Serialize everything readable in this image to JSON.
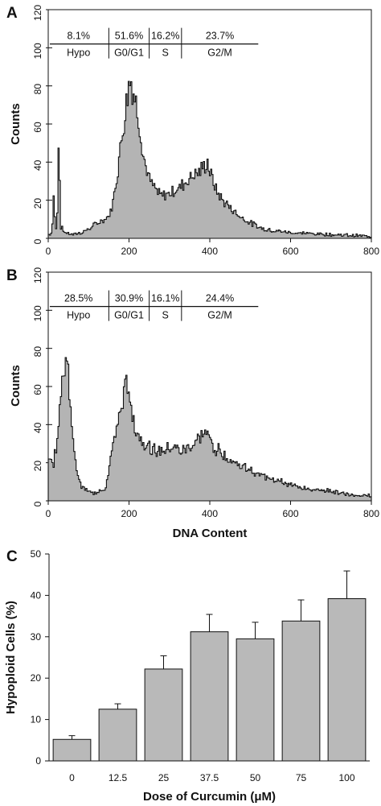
{
  "chart_data": [
    {
      "panel": "A",
      "type": "area",
      "xlabel": "",
      "ylabel": "Counts",
      "xlim": [
        0,
        800
      ],
      "ylim": [
        0,
        120
      ],
      "x_ticks": [
        "0",
        "200",
        "400",
        "600",
        "800"
      ],
      "y_ticks": [
        "0",
        "20",
        "40",
        "60",
        "80",
        "100",
        "120"
      ],
      "phases": [
        {
          "label": "Hypo",
          "percent": "8.1%",
          "range": [
            0,
            150
          ]
        },
        {
          "label": "G0/G1",
          "percent": "51.6%",
          "range": [
            150,
            250
          ]
        },
        {
          "label": "S",
          "percent": "16.2%",
          "range": [
            250,
            330
          ]
        },
        {
          "label": "G2/M",
          "percent": "23.7%",
          "range": [
            330,
            520
          ]
        }
      ],
      "profile": [
        [
          0,
          2
        ],
        [
          8,
          3
        ],
        [
          12,
          22
        ],
        [
          16,
          8
        ],
        [
          20,
          3
        ],
        [
          24,
          46
        ],
        [
          27,
          30
        ],
        [
          30,
          6
        ],
        [
          40,
          3
        ],
        [
          60,
          2
        ],
        [
          80,
          3
        ],
        [
          100,
          5
        ],
        [
          120,
          8
        ],
        [
          140,
          10
        ],
        [
          150,
          12
        ],
        [
          160,
          20
        ],
        [
          170,
          35
        ],
        [
          180,
          52
        ],
        [
          190,
          68
        ],
        [
          197,
          80
        ],
        [
          203,
          84
        ],
        [
          208,
          78
        ],
        [
          215,
          72
        ],
        [
          225,
          60
        ],
        [
          235,
          42
        ],
        [
          250,
          30
        ],
        [
          265,
          25
        ],
        [
          280,
          22
        ],
        [
          300,
          24
        ],
        [
          320,
          26
        ],
        [
          340,
          30
        ],
        [
          360,
          34
        ],
        [
          375,
          35
        ],
        [
          385,
          38
        ],
        [
          393,
          40
        ],
        [
          400,
          34
        ],
        [
          415,
          25
        ],
        [
          430,
          20
        ],
        [
          450,
          16
        ],
        [
          470,
          12
        ],
        [
          500,
          8
        ],
        [
          530,
          5
        ],
        [
          560,
          4
        ],
        [
          600,
          3
        ],
        [
          700,
          2
        ],
        [
          800,
          1
        ]
      ]
    },
    {
      "panel": "B",
      "type": "area",
      "xlabel": "DNA Content",
      "ylabel": "Counts",
      "xlim": [
        0,
        800
      ],
      "ylim": [
        0,
        120
      ],
      "x_ticks": [
        "0",
        "200",
        "400",
        "600",
        "800"
      ],
      "y_ticks": [
        "0",
        "20",
        "40",
        "60",
        "80",
        "100",
        "120"
      ],
      "phases": [
        {
          "label": "Hypo",
          "percent": "28.5%",
          "range": [
            0,
            150
          ]
        },
        {
          "label": "G0/G1",
          "percent": "30.9%",
          "range": [
            150,
            250
          ]
        },
        {
          "label": "S",
          "percent": "16.1%",
          "range": [
            250,
            330
          ]
        },
        {
          "label": "G2/M",
          "percent": "24.4%",
          "range": [
            330,
            520
          ]
        }
      ],
      "profile": [
        [
          0,
          25
        ],
        [
          10,
          18
        ],
        [
          20,
          30
        ],
        [
          30,
          55
        ],
        [
          38,
          72
        ],
        [
          43,
          84
        ],
        [
          48,
          70
        ],
        [
          55,
          45
        ],
        [
          62,
          25
        ],
        [
          70,
          15
        ],
        [
          80,
          8
        ],
        [
          95,
          5
        ],
        [
          120,
          4
        ],
        [
          140,
          6
        ],
        [
          160,
          30
        ],
        [
          175,
          45
        ],
        [
          187,
          55
        ],
        [
          195,
          62
        ],
        [
          203,
          52
        ],
        [
          215,
          38
        ],
        [
          230,
          32
        ],
        [
          250,
          28
        ],
        [
          270,
          26
        ],
        [
          290,
          27
        ],
        [
          310,
          28
        ],
        [
          330,
          26
        ],
        [
          350,
          28
        ],
        [
          370,
          32
        ],
        [
          385,
          36
        ],
        [
          395,
          33
        ],
        [
          410,
          28
        ],
        [
          430,
          25
        ],
        [
          460,
          20
        ],
        [
          490,
          17
        ],
        [
          520,
          14
        ],
        [
          560,
          11
        ],
        [
          600,
          8
        ],
        [
          650,
          6
        ],
        [
          700,
          5
        ],
        [
          750,
          3
        ],
        [
          800,
          3
        ]
      ]
    },
    {
      "panel": "C",
      "type": "bar",
      "xlabel": "Dose of Curcumin (μM)",
      "ylabel": "Hypoploid Cells (%)",
      "ylim": [
        0,
        50
      ],
      "y_ticks": [
        "0",
        "10",
        "20",
        "30",
        "40",
        "50"
      ],
      "categories": [
        "0",
        "12.5",
        "25",
        "37.5",
        "50",
        "75",
        "100"
      ],
      "values": [
        5.2,
        12.5,
        22.2,
        31.2,
        29.5,
        33.8,
        39.2
      ],
      "errors": [
        0.9,
        1.3,
        3.2,
        4.2,
        4.0,
        5.1,
        6.7
      ]
    }
  ],
  "colors": {
    "fill": "#b4b4b4",
    "stroke": "#111111",
    "bar_fill": "#b9b9b9"
  }
}
